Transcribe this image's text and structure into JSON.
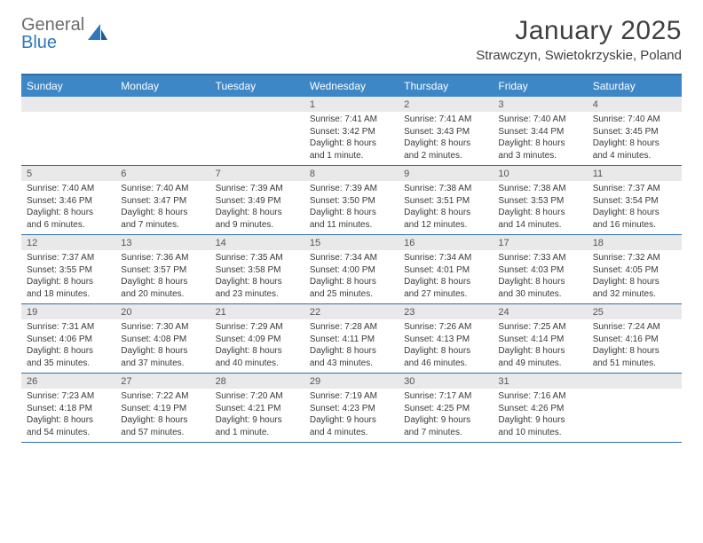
{
  "logo": {
    "top": "General",
    "bottom": "Blue"
  },
  "title": {
    "month": "January 2025",
    "location": "Strawczyn, Swietokrzyskie, Poland"
  },
  "colors": {
    "header_bg": "#3d87c7",
    "header_text": "#ffffff",
    "rule": "#2f6fa8",
    "daynum_bg": "#e9e9e9",
    "daynum_text": "#555555",
    "body_text": "#3a3a3a"
  },
  "dow": [
    "Sunday",
    "Monday",
    "Tuesday",
    "Wednesday",
    "Thursday",
    "Friday",
    "Saturday"
  ],
  "weeks": [
    [
      {
        "n": "",
        "lines": []
      },
      {
        "n": "",
        "lines": []
      },
      {
        "n": "",
        "lines": []
      },
      {
        "n": "1",
        "lines": [
          "Sunrise: 7:41 AM",
          "Sunset: 3:42 PM",
          "Daylight: 8 hours and 1 minute."
        ]
      },
      {
        "n": "2",
        "lines": [
          "Sunrise: 7:41 AM",
          "Sunset: 3:43 PM",
          "Daylight: 8 hours and 2 minutes."
        ]
      },
      {
        "n": "3",
        "lines": [
          "Sunrise: 7:40 AM",
          "Sunset: 3:44 PM",
          "Daylight: 8 hours and 3 minutes."
        ]
      },
      {
        "n": "4",
        "lines": [
          "Sunrise: 7:40 AM",
          "Sunset: 3:45 PM",
          "Daylight: 8 hours and 4 minutes."
        ]
      }
    ],
    [
      {
        "n": "5",
        "lines": [
          "Sunrise: 7:40 AM",
          "Sunset: 3:46 PM",
          "Daylight: 8 hours and 6 minutes."
        ]
      },
      {
        "n": "6",
        "lines": [
          "Sunrise: 7:40 AM",
          "Sunset: 3:47 PM",
          "Daylight: 8 hours and 7 minutes."
        ]
      },
      {
        "n": "7",
        "lines": [
          "Sunrise: 7:39 AM",
          "Sunset: 3:49 PM",
          "Daylight: 8 hours and 9 minutes."
        ]
      },
      {
        "n": "8",
        "lines": [
          "Sunrise: 7:39 AM",
          "Sunset: 3:50 PM",
          "Daylight: 8 hours and 11 minutes."
        ]
      },
      {
        "n": "9",
        "lines": [
          "Sunrise: 7:38 AM",
          "Sunset: 3:51 PM",
          "Daylight: 8 hours and 12 minutes."
        ]
      },
      {
        "n": "10",
        "lines": [
          "Sunrise: 7:38 AM",
          "Sunset: 3:53 PM",
          "Daylight: 8 hours and 14 minutes."
        ]
      },
      {
        "n": "11",
        "lines": [
          "Sunrise: 7:37 AM",
          "Sunset: 3:54 PM",
          "Daylight: 8 hours and 16 minutes."
        ]
      }
    ],
    [
      {
        "n": "12",
        "lines": [
          "Sunrise: 7:37 AM",
          "Sunset: 3:55 PM",
          "Daylight: 8 hours and 18 minutes."
        ]
      },
      {
        "n": "13",
        "lines": [
          "Sunrise: 7:36 AM",
          "Sunset: 3:57 PM",
          "Daylight: 8 hours and 20 minutes."
        ]
      },
      {
        "n": "14",
        "lines": [
          "Sunrise: 7:35 AM",
          "Sunset: 3:58 PM",
          "Daylight: 8 hours and 23 minutes."
        ]
      },
      {
        "n": "15",
        "lines": [
          "Sunrise: 7:34 AM",
          "Sunset: 4:00 PM",
          "Daylight: 8 hours and 25 minutes."
        ]
      },
      {
        "n": "16",
        "lines": [
          "Sunrise: 7:34 AM",
          "Sunset: 4:01 PM",
          "Daylight: 8 hours and 27 minutes."
        ]
      },
      {
        "n": "17",
        "lines": [
          "Sunrise: 7:33 AM",
          "Sunset: 4:03 PM",
          "Daylight: 8 hours and 30 minutes."
        ]
      },
      {
        "n": "18",
        "lines": [
          "Sunrise: 7:32 AM",
          "Sunset: 4:05 PM",
          "Daylight: 8 hours and 32 minutes."
        ]
      }
    ],
    [
      {
        "n": "19",
        "lines": [
          "Sunrise: 7:31 AM",
          "Sunset: 4:06 PM",
          "Daylight: 8 hours and 35 minutes."
        ]
      },
      {
        "n": "20",
        "lines": [
          "Sunrise: 7:30 AM",
          "Sunset: 4:08 PM",
          "Daylight: 8 hours and 37 minutes."
        ]
      },
      {
        "n": "21",
        "lines": [
          "Sunrise: 7:29 AM",
          "Sunset: 4:09 PM",
          "Daylight: 8 hours and 40 minutes."
        ]
      },
      {
        "n": "22",
        "lines": [
          "Sunrise: 7:28 AM",
          "Sunset: 4:11 PM",
          "Daylight: 8 hours and 43 minutes."
        ]
      },
      {
        "n": "23",
        "lines": [
          "Sunrise: 7:26 AM",
          "Sunset: 4:13 PM",
          "Daylight: 8 hours and 46 minutes."
        ]
      },
      {
        "n": "24",
        "lines": [
          "Sunrise: 7:25 AM",
          "Sunset: 4:14 PM",
          "Daylight: 8 hours and 49 minutes."
        ]
      },
      {
        "n": "25",
        "lines": [
          "Sunrise: 7:24 AM",
          "Sunset: 4:16 PM",
          "Daylight: 8 hours and 51 minutes."
        ]
      }
    ],
    [
      {
        "n": "26",
        "lines": [
          "Sunrise: 7:23 AM",
          "Sunset: 4:18 PM",
          "Daylight: 8 hours and 54 minutes."
        ]
      },
      {
        "n": "27",
        "lines": [
          "Sunrise: 7:22 AM",
          "Sunset: 4:19 PM",
          "Daylight: 8 hours and 57 minutes."
        ]
      },
      {
        "n": "28",
        "lines": [
          "Sunrise: 7:20 AM",
          "Sunset: 4:21 PM",
          "Daylight: 9 hours and 1 minute."
        ]
      },
      {
        "n": "29",
        "lines": [
          "Sunrise: 7:19 AM",
          "Sunset: 4:23 PM",
          "Daylight: 9 hours and 4 minutes."
        ]
      },
      {
        "n": "30",
        "lines": [
          "Sunrise: 7:17 AM",
          "Sunset: 4:25 PM",
          "Daylight: 9 hours and 7 minutes."
        ]
      },
      {
        "n": "31",
        "lines": [
          "Sunrise: 7:16 AM",
          "Sunset: 4:26 PM",
          "Daylight: 9 hours and 10 minutes."
        ]
      },
      {
        "n": "",
        "lines": []
      }
    ]
  ]
}
